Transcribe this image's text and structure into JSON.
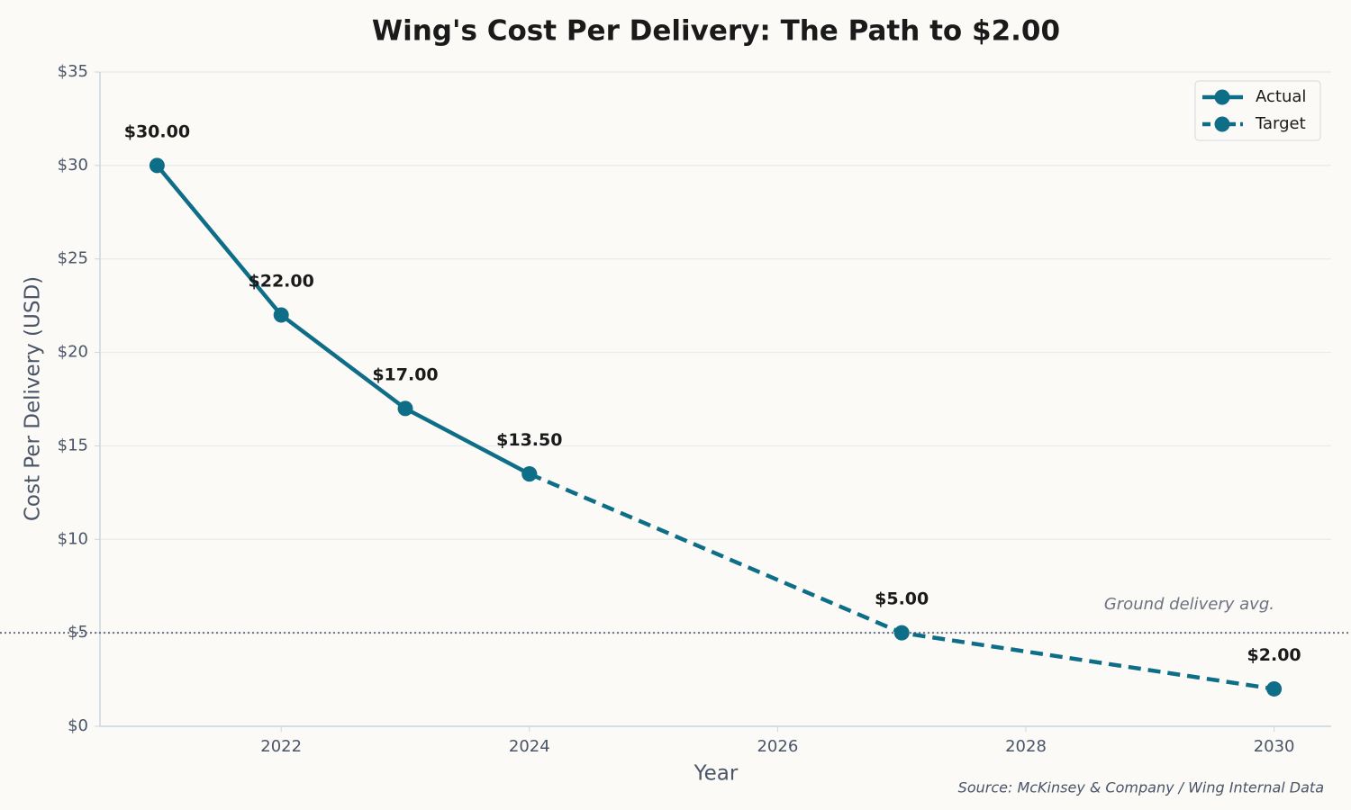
{
  "chart_data": {
    "type": "line",
    "title": "Wing's Cost Per Delivery: The Path to $2.00",
    "xlabel": "Year",
    "ylabel": "Cost Per Delivery (USD)",
    "source": "Source: McKinsey & Company / Wing Internal Data",
    "xlim": [
      2020.54,
      2030.46
    ],
    "xticks": [
      2022,
      2024,
      2026,
      2028,
      2030
    ],
    "ylim": [
      0,
      35
    ],
    "yticks": [
      {
        "value": 0,
        "label": "$0"
      },
      {
        "value": 5,
        "label": "$5"
      },
      {
        "value": 10,
        "label": "$10"
      },
      {
        "value": 15,
        "label": "$15"
      },
      {
        "value": 20,
        "label": "$20"
      },
      {
        "value": 25,
        "label": "$25"
      },
      {
        "value": 30,
        "label": "$30"
      },
      {
        "value": 35,
        "label": "$35"
      }
    ],
    "grid": true,
    "legend": "upper right",
    "reference_line": {
      "value": 5,
      "label": "Ground delivery avg.",
      "color": "#6b7280"
    },
    "series": [
      {
        "name": "Actual",
        "color": "#0f6e87",
        "linestyle": "solid",
        "x": [
          2021,
          2022,
          2023,
          2024
        ],
        "values": [
          30,
          22,
          17,
          13.5
        ],
        "value_labels": [
          "$30.00",
          "$22.00",
          "$17.00",
          "$13.50"
        ]
      },
      {
        "name": "Target",
        "color": "#0f6e87",
        "linestyle": "dashed",
        "x": [
          2024,
          2027,
          2030
        ],
        "values": [
          13.5,
          5,
          2
        ],
        "value_labels": [
          null,
          "$5.00",
          "$2.00"
        ]
      }
    ]
  }
}
